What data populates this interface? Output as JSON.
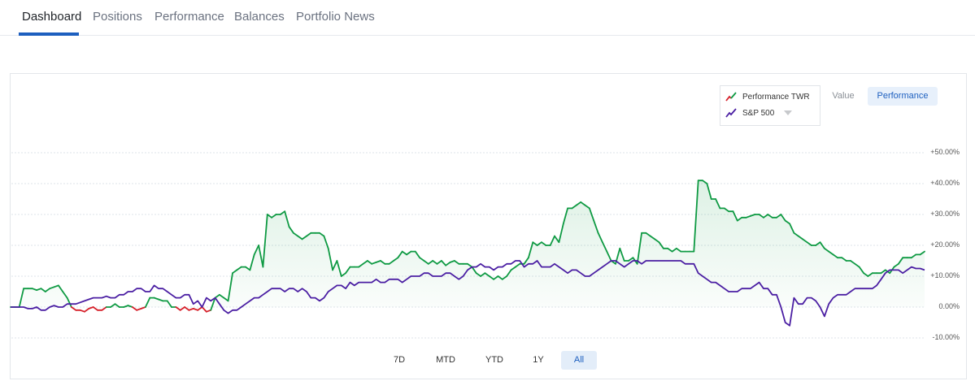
{
  "tabs": [
    {
      "label": "Dashboard",
      "active": true
    },
    {
      "label": "Positions",
      "active": false
    },
    {
      "label": "Performance",
      "active": false
    },
    {
      "label": "Balances",
      "active": false
    },
    {
      "label": "Portfolio News",
      "active": false
    }
  ],
  "legend": {
    "series1_label": "Performance TWR",
    "series2_label": "S&P 500"
  },
  "view_toggle": {
    "value_label": "Value",
    "performance_label": "Performance",
    "selected": "Performance"
  },
  "ranges": [
    {
      "label": "7D",
      "active": false
    },
    {
      "label": "MTD",
      "active": false
    },
    {
      "label": "YTD",
      "active": false
    },
    {
      "label": "1Y",
      "active": false
    },
    {
      "label": "All",
      "active": true
    }
  ],
  "colors": {
    "accent": "#1d5fbf",
    "performance_positive": "#0f9a43",
    "performance_negative": "#d6202a",
    "benchmark": "#4b1fa3",
    "area_fill": "#e8f6ee"
  },
  "chart_data": {
    "type": "line",
    "y_unit": "%",
    "ylim": [
      -10,
      50
    ],
    "yticks": [
      "+50.00%",
      "+40.00%",
      "+30.00%",
      "+20.00%",
      "+10.00%",
      "0.00%",
      "-10.00%"
    ],
    "ytick_values": [
      50,
      40,
      30,
      20,
      10,
      0,
      -10
    ],
    "grid": true,
    "legend_position": "top-right",
    "series": [
      {
        "name": "Performance TWR",
        "values": [
          0,
          0,
          0,
          6,
          6,
          6,
          5.5,
          6,
          5,
          6,
          6.5,
          7,
          5,
          3,
          0,
          -1,
          -1,
          -1.5,
          -0.5,
          0,
          -1,
          -1,
          0,
          0,
          1,
          0,
          0,
          0.5,
          0,
          -1,
          -0.5,
          0,
          3,
          3,
          2.5,
          2,
          2,
          0,
          0,
          -1,
          0,
          -1,
          -0.5,
          -1,
          0,
          -1.5,
          -1,
          3,
          4,
          3,
          2,
          11,
          12,
          13,
          13,
          12,
          17,
          20,
          13,
          30,
          29,
          30,
          30,
          31,
          26,
          24,
          23,
          22,
          23,
          24,
          24,
          24,
          23,
          19,
          12,
          15,
          10,
          11,
          13,
          13,
          13,
          14,
          15,
          14,
          14.5,
          15,
          14,
          14,
          15,
          16,
          18,
          17,
          18,
          18,
          16,
          15,
          14,
          15,
          14,
          15,
          13.5,
          14.5,
          15,
          14,
          14,
          14,
          13,
          11,
          10,
          11,
          10,
          9,
          10,
          9,
          10,
          12,
          13,
          14,
          14,
          16,
          21,
          20,
          21,
          20,
          20,
          23,
          21,
          27,
          32,
          32,
          33,
          34,
          33,
          32,
          28,
          24,
          21,
          18,
          15,
          14,
          19,
          15,
          15,
          16,
          14,
          24,
          24,
          23,
          22,
          21,
          19,
          19,
          18,
          19,
          18,
          18,
          18,
          18,
          41,
          41,
          40,
          35,
          35,
          32,
          32,
          31,
          31,
          28,
          29,
          29,
          29.5,
          30,
          30,
          29,
          30,
          29,
          29,
          30,
          28,
          27,
          24,
          23,
          22,
          21,
          20,
          20,
          21,
          19,
          18,
          17,
          16,
          16,
          15,
          15,
          14,
          13,
          11,
          10,
          11,
          11,
          11,
          12,
          11,
          13,
          14,
          16,
          16,
          16,
          17,
          17,
          18
        ],
        "negative_color": "#d6202a"
      },
      {
        "name": "S&P 500",
        "values": [
          0,
          0,
          0,
          0,
          -0.5,
          -0.5,
          0,
          -1,
          -1,
          0,
          0.5,
          0,
          0,
          1,
          1,
          1,
          1.5,
          2,
          2.5,
          3,
          3,
          3,
          3.5,
          3,
          3,
          4,
          4,
          5,
          5,
          6,
          6,
          5,
          5,
          7,
          6,
          6,
          5,
          4,
          3,
          3,
          4,
          4,
          1,
          2,
          0,
          3,
          2,
          3,
          1,
          -1,
          -2,
          -1,
          -1,
          0,
          1,
          2,
          3,
          3,
          4,
          5,
          6,
          6,
          6,
          5,
          6,
          6,
          5,
          6,
          5,
          3,
          3,
          2,
          3,
          5,
          6,
          7,
          7,
          6,
          8,
          7,
          8,
          8,
          8,
          8,
          9,
          8,
          8,
          9,
          9,
          9,
          8,
          9,
          10,
          10,
          10,
          11,
          11,
          10,
          10,
          10,
          11,
          11,
          10,
          9,
          10,
          12,
          13,
          13,
          14,
          13,
          13,
          12,
          13,
          13,
          14,
          14,
          15,
          15,
          13,
          14,
          14,
          15,
          13,
          13,
          13,
          14,
          13,
          12,
          11,
          12,
          12,
          11,
          10,
          10,
          11,
          12,
          13,
          14,
          15,
          15,
          14,
          13,
          14,
          15,
          15,
          14,
          15,
          15,
          15,
          15,
          15,
          15,
          15,
          15,
          15,
          14,
          14,
          14,
          11,
          10,
          9,
          8,
          8,
          7,
          6,
          5,
          5,
          5,
          6,
          6,
          6,
          7,
          8,
          6,
          6,
          4,
          4,
          0,
          -5,
          -6,
          3,
          1,
          1,
          3,
          3,
          2,
          0,
          -3,
          1,
          3,
          4,
          4,
          4,
          5,
          6,
          6,
          6,
          6,
          6,
          7,
          9,
          11,
          12,
          12,
          12,
          11,
          12,
          13,
          12.5,
          12.5,
          12
        ]
      }
    ]
  }
}
